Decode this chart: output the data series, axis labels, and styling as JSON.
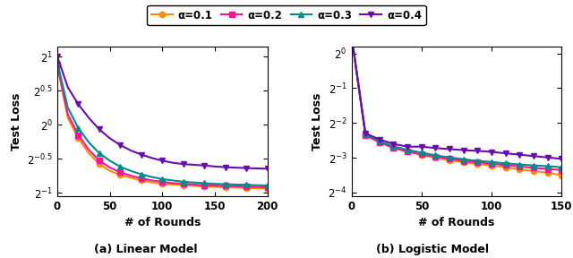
{
  "linear": {
    "rounds": [
      0,
      10,
      20,
      30,
      40,
      50,
      60,
      70,
      80,
      90,
      100,
      110,
      120,
      130,
      140,
      150,
      160,
      170,
      180,
      190,
      200
    ],
    "alpha_0.1_log2": [
      0.87,
      0.1,
      -0.2,
      -0.42,
      -0.58,
      -0.68,
      -0.74,
      -0.78,
      -0.82,
      -0.85,
      -0.87,
      -0.88,
      -0.89,
      -0.9,
      -0.91,
      -0.915,
      -0.92,
      -0.925,
      -0.93,
      -0.935,
      -0.94
    ],
    "alpha_0.2_log2": [
      0.88,
      0.15,
      -0.15,
      -0.37,
      -0.53,
      -0.63,
      -0.7,
      -0.75,
      -0.79,
      -0.82,
      -0.84,
      -0.86,
      -0.87,
      -0.88,
      -0.89,
      -0.895,
      -0.9,
      -0.905,
      -0.91,
      -0.915,
      -0.92
    ],
    "alpha_0.3_log2": [
      0.92,
      0.25,
      -0.05,
      -0.26,
      -0.42,
      -0.53,
      -0.62,
      -0.68,
      -0.73,
      -0.77,
      -0.8,
      -0.82,
      -0.84,
      -0.85,
      -0.86,
      -0.87,
      -0.875,
      -0.88,
      -0.885,
      -0.89,
      -0.895
    ],
    "alpha_0.4_log2": [
      1.0,
      0.55,
      0.3,
      0.1,
      -0.07,
      -0.2,
      -0.3,
      -0.38,
      -0.44,
      -0.49,
      -0.53,
      -0.56,
      -0.58,
      -0.59,
      -0.6,
      -0.615,
      -0.625,
      -0.632,
      -0.638,
      -0.643,
      -0.648
    ],
    "ylim_log2": [
      -1.05,
      1.15
    ],
    "yticks_log2": [
      -1,
      -0.5,
      0,
      0.5,
      1
    ],
    "xlim": [
      0,
      200
    ],
    "xticks": [
      0,
      50,
      100,
      150,
      200
    ],
    "marker_every": 2
  },
  "logistic": {
    "rounds": [
      0,
      10,
      20,
      30,
      40,
      50,
      60,
      70,
      80,
      90,
      100,
      110,
      120,
      130,
      140,
      150
    ],
    "alpha_0.1_log2": [
      0.52,
      -2.35,
      -2.55,
      -2.72,
      -2.82,
      -2.92,
      -3.0,
      -3.07,
      -3.13,
      -3.18,
      -3.22,
      -3.27,
      -3.33,
      -3.38,
      -3.43,
      -3.5
    ],
    "alpha_0.2_log2": [
      0.52,
      -2.35,
      -2.55,
      -2.72,
      -2.82,
      -2.9,
      -2.97,
      -3.03,
      -3.09,
      -3.13,
      -3.17,
      -3.21,
      -3.25,
      -3.29,
      -3.32,
      -3.35
    ],
    "alpha_0.3_log2": [
      0.52,
      -2.32,
      -2.52,
      -2.67,
      -2.77,
      -2.85,
      -2.93,
      -2.99,
      -3.04,
      -3.09,
      -3.12,
      -3.16,
      -3.19,
      -3.22,
      -3.24,
      -3.27
    ],
    "alpha_0.4_log2": [
      0.52,
      -2.3,
      -2.47,
      -2.6,
      -2.68,
      -2.68,
      -2.72,
      -2.75,
      -2.78,
      -2.8,
      -2.83,
      -2.87,
      -2.91,
      -2.95,
      -2.99,
      -3.03
    ],
    "ylim_log2": [
      -4.1,
      0.2
    ],
    "yticks_log2": [
      -4,
      -3,
      -2,
      -1,
      0
    ],
    "xlim": [
      0,
      150
    ],
    "xticks": [
      0,
      50,
      100,
      150
    ],
    "marker_every": 1
  },
  "colors": {
    "alpha_0.1": "#FF8C00",
    "alpha_0.2": "#FF1493",
    "alpha_0.3": "#008B8B",
    "alpha_0.4": "#6A0DAD"
  },
  "markers": {
    "alpha_0.1": "o",
    "alpha_0.2": "s",
    "alpha_0.3": "^",
    "alpha_0.4": "v"
  },
  "legend_labels": [
    "α=0.1",
    "α=0.2",
    "α=0.3",
    "α=0.4"
  ],
  "xlabel": "# of Rounds",
  "ylabel": "Test Loss",
  "title_a": "(a) Linear Model",
  "title_b": "(b) Logistic Model"
}
